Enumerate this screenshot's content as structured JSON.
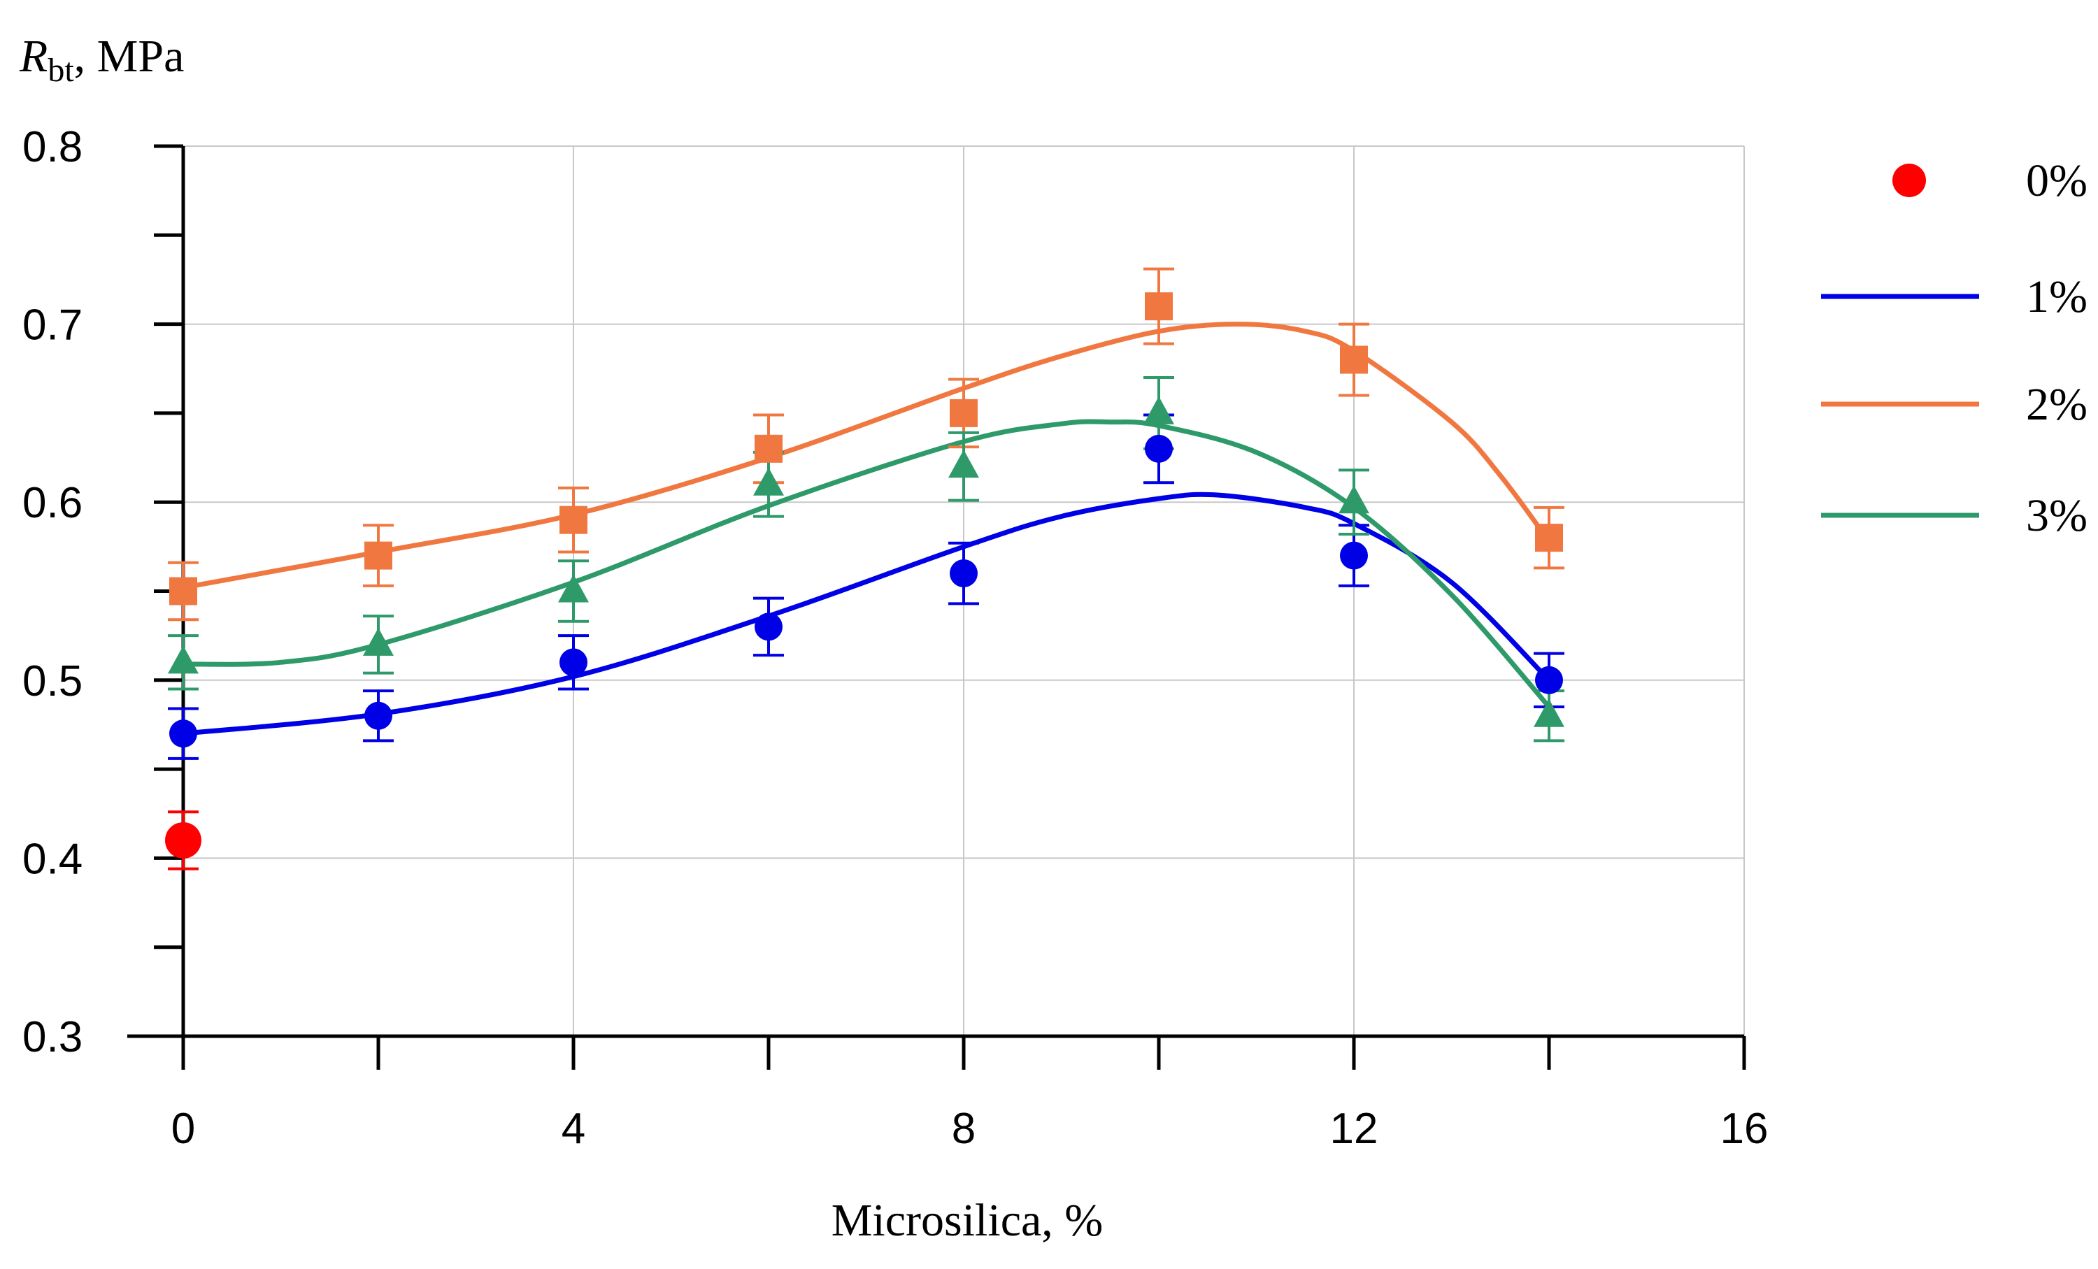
{
  "chart_data": {
    "type": "scatter",
    "title": "",
    "xlabel": "Microsilica, %",
    "ylabel": {
      "symbol": "R",
      "subscript": "bt",
      "suffix": ", MPa"
    },
    "xlim": [
      0,
      16
    ],
    "ylim": [
      0.3,
      0.8
    ],
    "xticks": [
      0,
      4,
      8,
      12,
      16
    ],
    "xtick_labels": [
      "0",
      "4",
      "8",
      "12",
      "16"
    ],
    "yticks": [
      0.3,
      0.4,
      0.5,
      0.6,
      0.7,
      0.8
    ],
    "ytick_labels": [
      "0.3",
      "0.4",
      "0.5",
      "0.6",
      "0.7",
      "0.8"
    ],
    "x_minor_ticks": [
      2,
      6,
      10,
      14
    ],
    "y_minor_ticks": [
      0.35,
      0.45,
      0.55,
      0.65,
      0.75
    ],
    "grid": true,
    "legend_position": "right",
    "series": [
      {
        "name": "0%",
        "color": "#ff0000",
        "marker": "circle-large",
        "line": false,
        "x": [
          0
        ],
        "y": [
          0.41
        ],
        "error": [
          0.016
        ]
      },
      {
        "name": "1%",
        "color": "#0000e6",
        "marker": "circle",
        "line": true,
        "x": [
          0,
          2,
          4,
          6,
          8,
          10,
          12,
          14
        ],
        "y": [
          0.47,
          0.48,
          0.51,
          0.53,
          0.56,
          0.63,
          0.57,
          0.5
        ],
        "error": [
          0.014,
          0.014,
          0.015,
          0.016,
          0.017,
          0.019,
          0.017,
          0.015
        ],
        "fit": [
          [
            0,
            0.47
          ],
          [
            2,
            0.481
          ],
          [
            4,
            0.502
          ],
          [
            6,
            0.536
          ],
          [
            8,
            0.575
          ],
          [
            9,
            0.592
          ],
          [
            10,
            0.602
          ],
          [
            10.6,
            0.604
          ],
          [
            11.5,
            0.597
          ],
          [
            12,
            0.588
          ],
          [
            13,
            0.555
          ],
          [
            14,
            0.5
          ]
        ]
      },
      {
        "name": "2%",
        "color": "#f07840",
        "marker": "square",
        "line": true,
        "x": [
          0,
          2,
          4,
          6,
          8,
          10,
          12,
          14
        ],
        "y": [
          0.55,
          0.57,
          0.59,
          0.63,
          0.65,
          0.71,
          0.68,
          0.58
        ],
        "error": [
          0.016,
          0.017,
          0.018,
          0.019,
          0.019,
          0.021,
          0.02,
          0.017
        ],
        "fit": [
          [
            0,
            0.552
          ],
          [
            2,
            0.572
          ],
          [
            4,
            0.593
          ],
          [
            6,
            0.625
          ],
          [
            8,
            0.664
          ],
          [
            9,
            0.682
          ],
          [
            10,
            0.696
          ],
          [
            10.8,
            0.7
          ],
          [
            11.5,
            0.696
          ],
          [
            12,
            0.685
          ],
          [
            13,
            0.645
          ],
          [
            13.5,
            0.615
          ],
          [
            14,
            0.578
          ]
        ]
      },
      {
        "name": "3%",
        "color": "#2e9a6a",
        "marker": "triangle",
        "line": true,
        "x": [
          0,
          2,
          4,
          6,
          8,
          10,
          12,
          14
        ],
        "y": [
          0.51,
          0.52,
          0.55,
          0.61,
          0.62,
          0.65,
          0.6,
          0.48
        ],
        "error": [
          0.015,
          0.016,
          0.017,
          0.018,
          0.019,
          0.02,
          0.018,
          0.014
        ],
        "fit": [
          [
            0,
            0.509
          ],
          [
            1,
            0.51
          ],
          [
            2,
            0.52
          ],
          [
            4,
            0.555
          ],
          [
            6,
            0.598
          ],
          [
            8,
            0.634
          ],
          [
            9,
            0.644
          ],
          [
            9.5,
            0.645
          ],
          [
            10,
            0.643
          ],
          [
            11,
            0.628
          ],
          [
            12,
            0.597
          ],
          [
            13,
            0.548
          ],
          [
            14,
            0.485
          ]
        ]
      }
    ]
  }
}
